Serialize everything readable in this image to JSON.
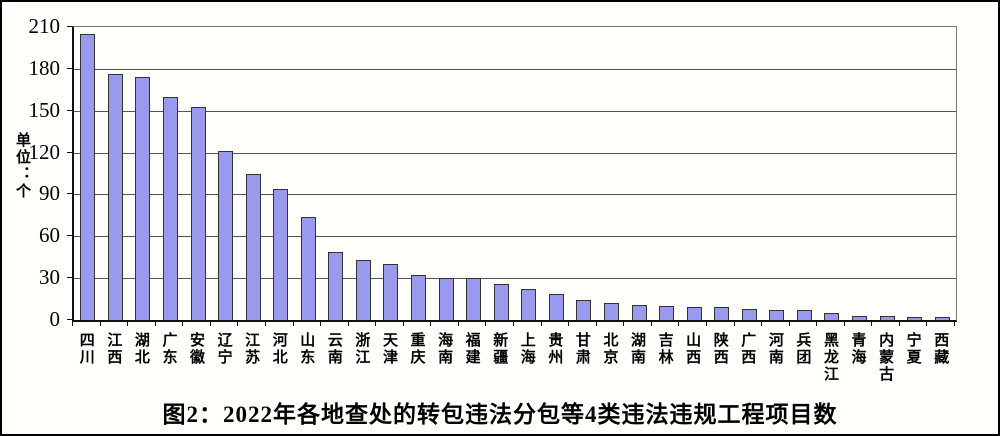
{
  "chart_data": {
    "type": "bar",
    "title": "图2：2022年各地查处的转包违法分包等4类违法违规工程项目数",
    "xlabel": "",
    "ylabel": "单位：个",
    "ylim": [
      0,
      210
    ],
    "y_ticks": [
      210,
      180,
      150,
      120,
      90,
      60,
      30,
      0
    ],
    "grid": true,
    "legend": "none",
    "categories": [
      "四川",
      "江西",
      "湖北",
      "广东",
      "安徽",
      "辽宁",
      "江苏",
      "河北",
      "山东",
      "云南",
      "浙江",
      "天津",
      "重庆",
      "海南",
      "福建",
      "新疆",
      "上海",
      "贵州",
      "甘肃",
      "北京",
      "湖南",
      "吉林",
      "山西",
      "陕西",
      "广西",
      "河南",
      "兵团",
      "黑龙江",
      "青海",
      "内蒙古",
      "宁夏",
      "西藏"
    ],
    "values": [
      205,
      176,
      174,
      160,
      153,
      121,
      105,
      94,
      74,
      49,
      43,
      40,
      32,
      30,
      30,
      26,
      22,
      19,
      14,
      12,
      11,
      10,
      9,
      9,
      8,
      7,
      7,
      5,
      3,
      3,
      2,
      2
    ],
    "colors": {
      "bar_fill": "#9999EE",
      "bar_border": "#333333",
      "gridline": "#555555",
      "axis": "#111111",
      "background": "#FFFFFC"
    }
  }
}
